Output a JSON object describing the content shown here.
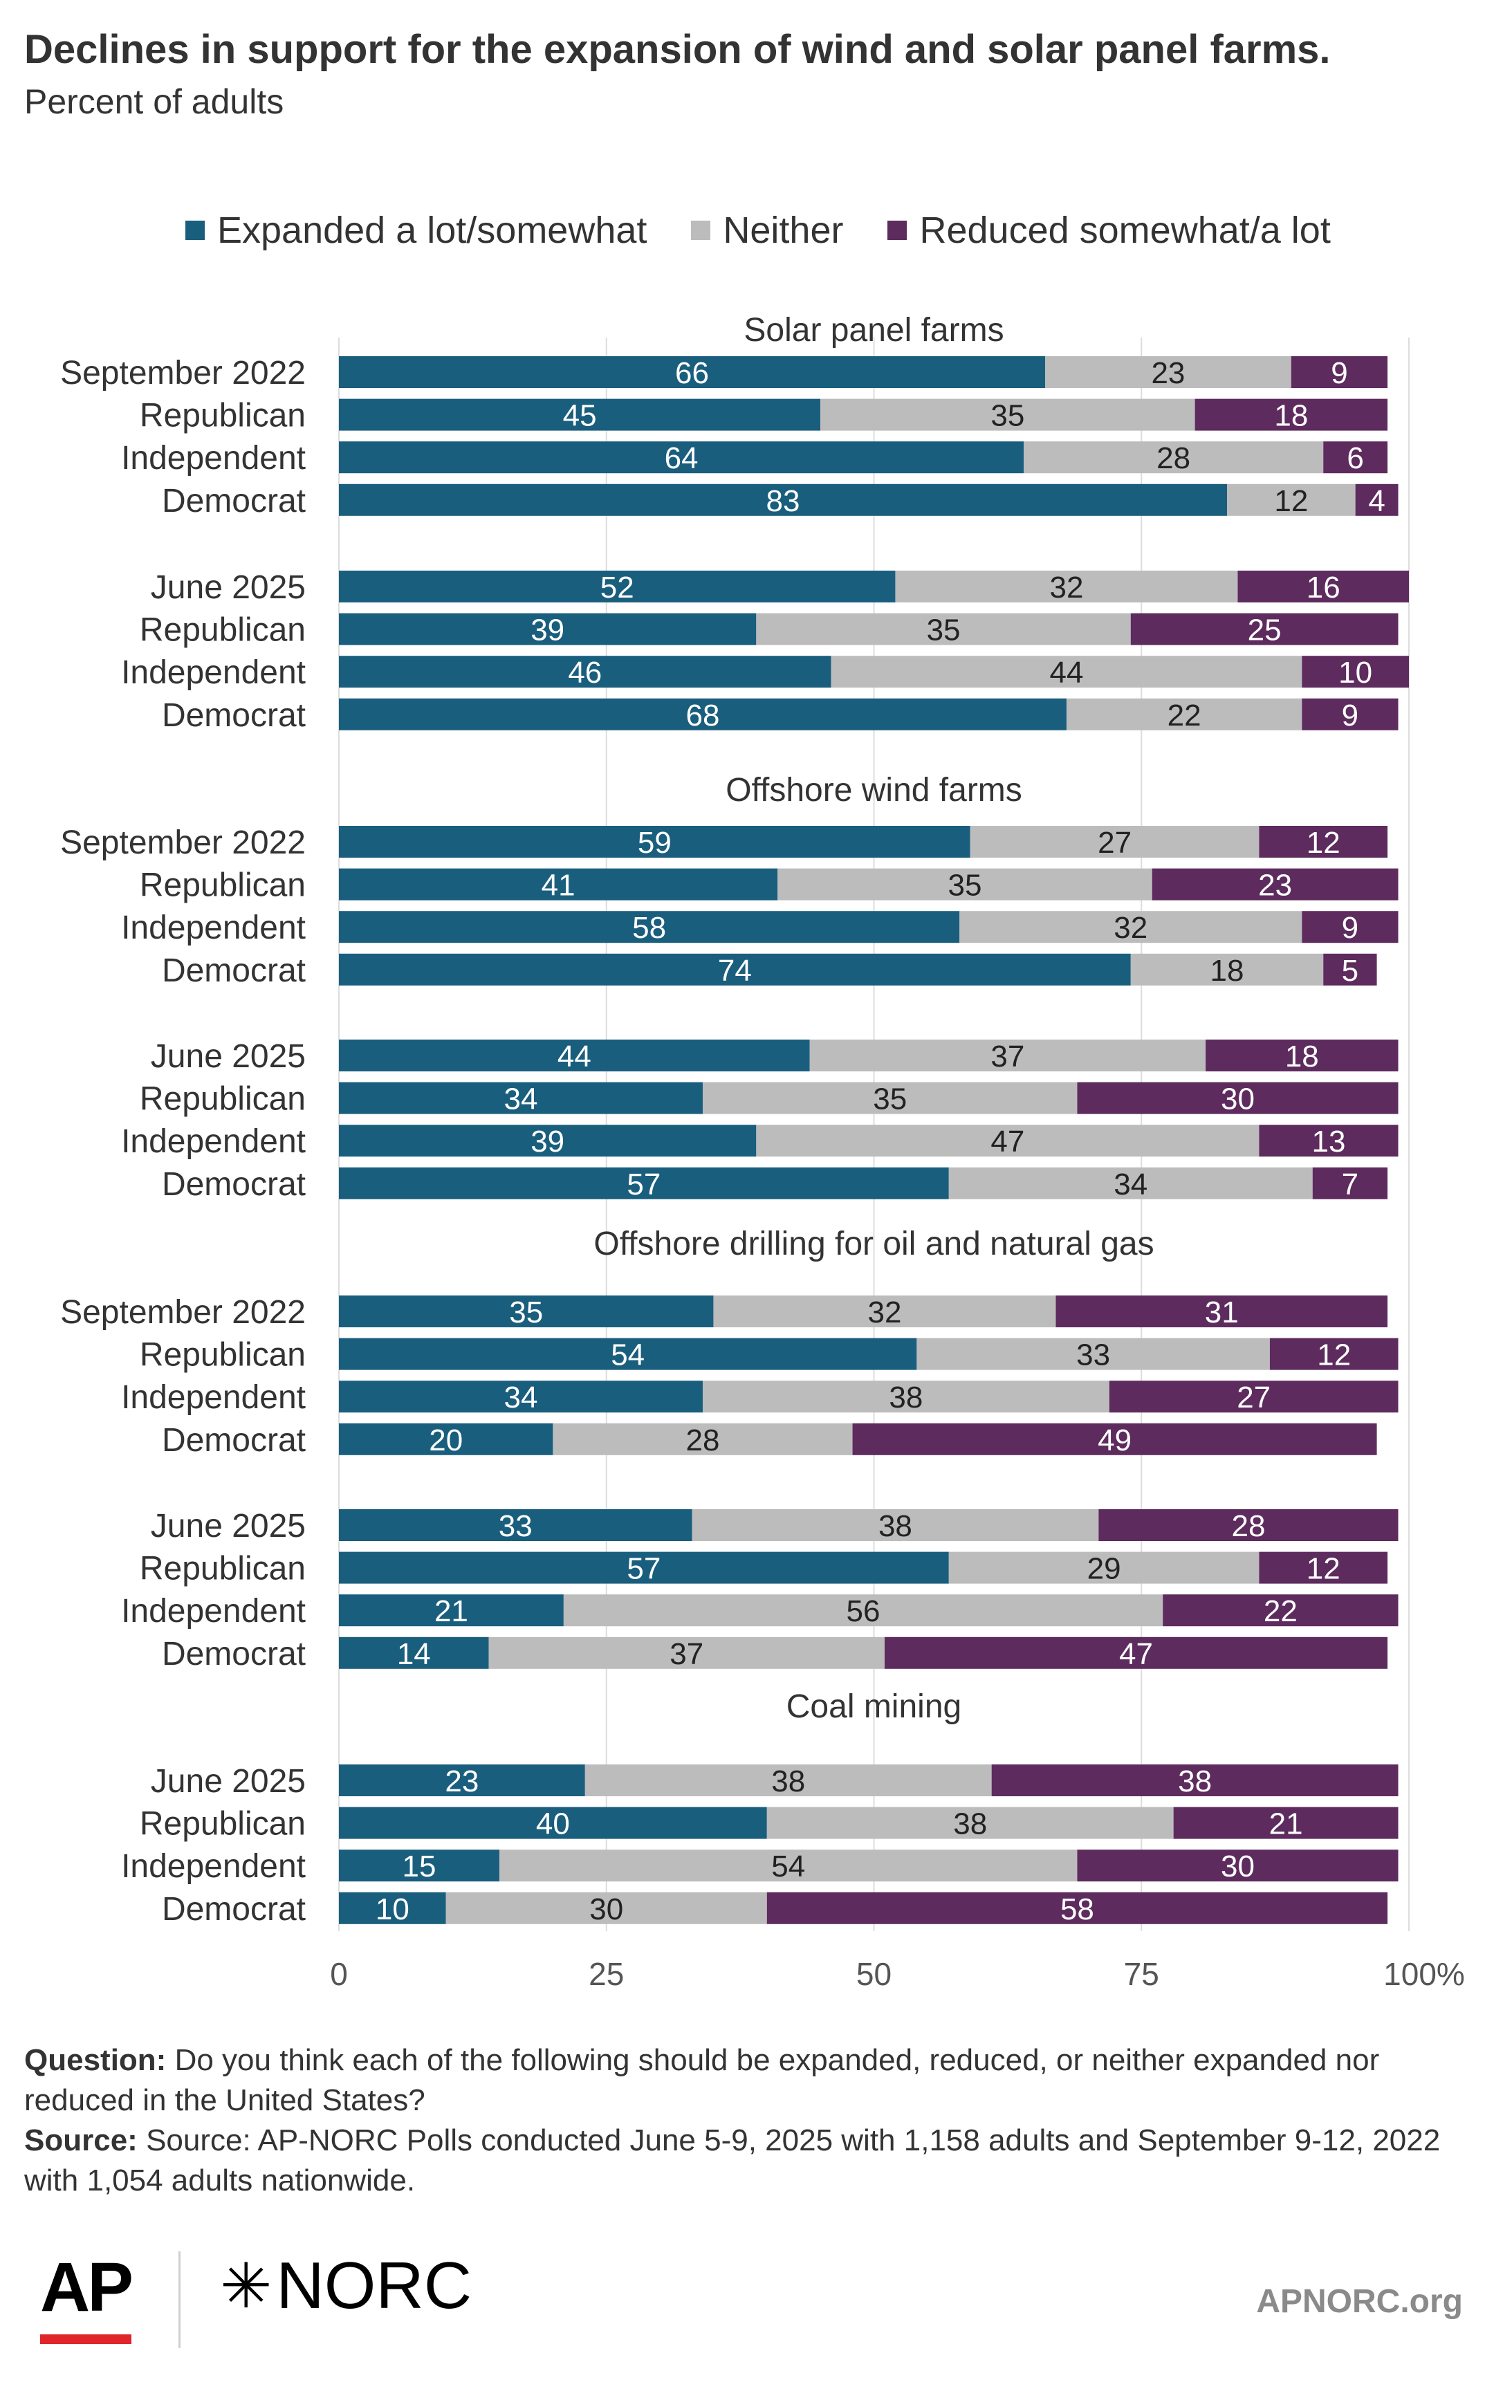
{
  "title": "Declines in support for the expansion of wind and solar panel farms.",
  "subtitle": "Percent of adults",
  "colors": {
    "expanded": "#1a5e7e",
    "neither": "#bcbcbc",
    "reduced": "#5e2b5e",
    "grid": "#dddddd"
  },
  "legend": [
    {
      "label": "Expanded a lot/somewhat",
      "color": "#1a5e7e"
    },
    {
      "label": "Neither",
      "color": "#bcbcbc"
    },
    {
      "label": "Reduced somewhat/a lot",
      "color": "#5e2b5e"
    }
  ],
  "chart_data": {
    "type": "bar",
    "orientation": "horizontal",
    "stacked": true,
    "xlim": [
      0,
      100
    ],
    "xticks": [
      "0",
      "25",
      "50",
      "75",
      "100%"
    ],
    "series_names": [
      "Expanded a lot/somewhat",
      "Neither",
      "Reduced somewhat/a lot"
    ],
    "panels": [
      {
        "title": "Solar panel farms",
        "groups": [
          {
            "rows": [
              {
                "label": "September 2022",
                "values": [
                  66,
                  23,
                  9
                ]
              },
              {
                "label": "Republican",
                "values": [
                  45,
                  35,
                  18
                ]
              },
              {
                "label": "Independent",
                "values": [
                  64,
                  28,
                  6
                ]
              },
              {
                "label": "Democrat",
                "values": [
                  83,
                  12,
                  4
                ]
              }
            ]
          },
          {
            "rows": [
              {
                "label": "June 2025",
                "values": [
                  52,
                  32,
                  16
                ]
              },
              {
                "label": "Republican",
                "values": [
                  39,
                  35,
                  25
                ]
              },
              {
                "label": "Independent",
                "values": [
                  46,
                  44,
                  10
                ]
              },
              {
                "label": "Democrat",
                "values": [
                  68,
                  22,
                  9
                ]
              }
            ]
          }
        ]
      },
      {
        "title": "Offshore wind farms",
        "groups": [
          {
            "rows": [
              {
                "label": "September 2022",
                "values": [
                  59,
                  27,
                  12
                ]
              },
              {
                "label": "Republican",
                "values": [
                  41,
                  35,
                  23
                ]
              },
              {
                "label": "Independent",
                "values": [
                  58,
                  32,
                  9
                ]
              },
              {
                "label": "Democrat",
                "values": [
                  74,
                  18,
                  5
                ]
              }
            ]
          },
          {
            "rows": [
              {
                "label": "June 2025",
                "values": [
                  44,
                  37,
                  18
                ]
              },
              {
                "label": "Republican",
                "values": [
                  34,
                  35,
                  30
                ]
              },
              {
                "label": "Independent",
                "values": [
                  39,
                  47,
                  13
                ]
              },
              {
                "label": "Democrat",
                "values": [
                  57,
                  34,
                  7
                ]
              }
            ]
          }
        ]
      },
      {
        "title": "Offshore drilling for oil and natural gas",
        "groups": [
          {
            "rows": [
              {
                "label": "September 2022",
                "values": [
                  35,
                  32,
                  31
                ]
              },
              {
                "label": "Republican",
                "values": [
                  54,
                  33,
                  12
                ]
              },
              {
                "label": "Independent",
                "values": [
                  34,
                  38,
                  27
                ]
              },
              {
                "label": "Democrat",
                "values": [
                  20,
                  28,
                  49
                ]
              }
            ]
          },
          {
            "rows": [
              {
                "label": "June 2025",
                "values": [
                  33,
                  38,
                  28
                ]
              },
              {
                "label": "Republican",
                "values": [
                  57,
                  29,
                  12
                ]
              },
              {
                "label": "Independent",
                "values": [
                  21,
                  56,
                  22
                ]
              },
              {
                "label": "Democrat",
                "values": [
                  14,
                  37,
                  47
                ]
              }
            ]
          }
        ]
      },
      {
        "title": "Coal mining",
        "groups": [
          {
            "rows": [
              {
                "label": "June 2025",
                "values": [
                  23,
                  38,
                  38
                ]
              },
              {
                "label": "Republican",
                "values": [
                  40,
                  38,
                  21
                ]
              },
              {
                "label": "Independent",
                "values": [
                  15,
                  54,
                  30
                ]
              },
              {
                "label": "Democrat",
                "values": [
                  10,
                  30,
                  58
                ]
              }
            ]
          }
        ]
      }
    ]
  },
  "footer": {
    "question_label": "Question:",
    "question_text": "Do you think each of the following should be expanded, reduced, or neither expanded nor reduced in the United States?",
    "source_label": "Source:",
    "source_text": "Source: AP-NORC Polls conducted June 5-9, 2025 with 1,158 adults and September 9-12, 2022 with 1,054 adults nationwide."
  },
  "logos": {
    "ap": "AP",
    "norc": "NORC",
    "norc_icon": "asterisk-star-icon",
    "url": "APNORC.org"
  }
}
